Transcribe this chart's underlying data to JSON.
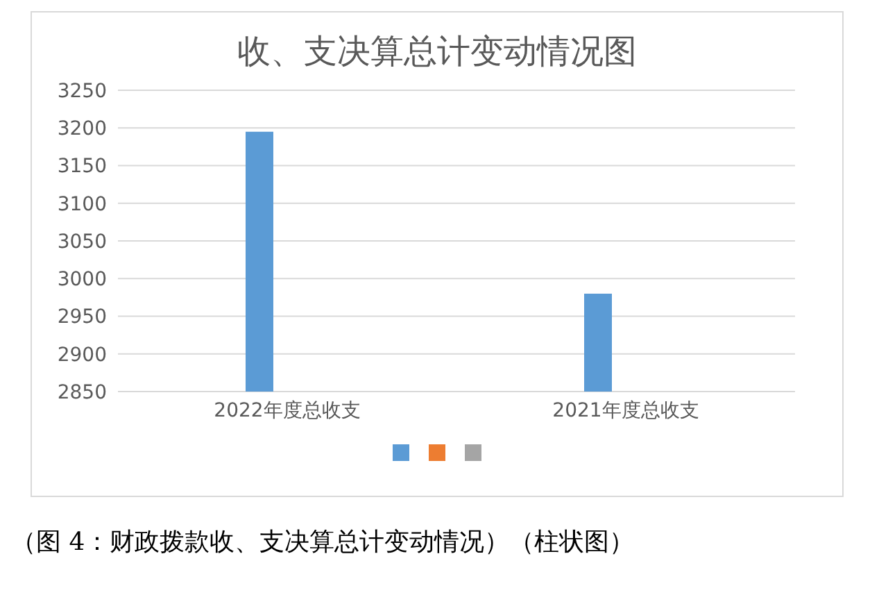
{
  "chart_data": {
    "type": "bar",
    "title": "收、支决算总计变动情况图",
    "categories": [
      "2022年度总收支",
      "2021年度总收支"
    ],
    "series": [
      {
        "color": "#5b9bd5",
        "values": [
          3195,
          2980
        ]
      },
      {
        "color": "#ed7d31",
        "values": [
          null,
          null
        ]
      },
      {
        "color": "#a5a5a5",
        "values": [
          null,
          null
        ]
      }
    ],
    "ylim": [
      2850,
      3250
    ],
    "yticks": [
      2850,
      2900,
      2950,
      3000,
      3050,
      3100,
      3150,
      3200,
      3250
    ],
    "grid": "y",
    "annotations": [
      "（图 4：财政拨款收、支决算总计变动情况）（柱状图）"
    ]
  }
}
